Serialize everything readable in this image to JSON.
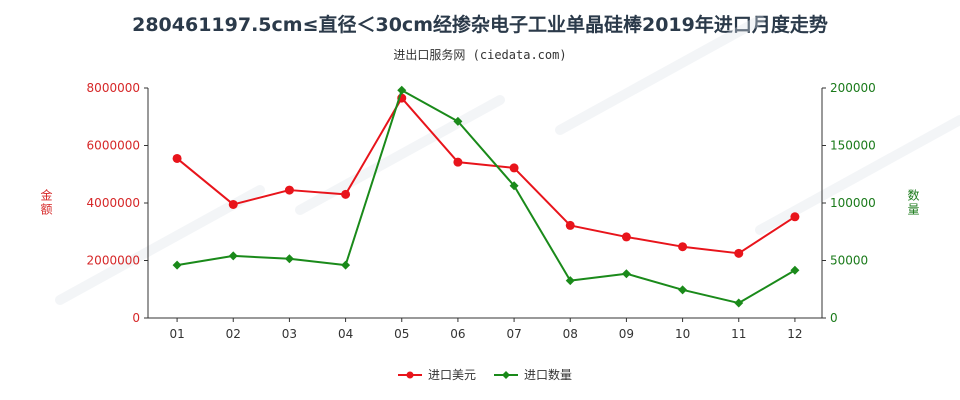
{
  "chart_data": {
    "type": "line",
    "title": "280461197.5cm≤直径＜30cm经掺杂电子工业单晶硅棒2019年进口月度走势",
    "subtitle": "进出口服务网 (ciedata.com)",
    "categories": [
      "01",
      "02",
      "03",
      "04",
      "05",
      "06",
      "07",
      "08",
      "09",
      "10",
      "11",
      "12"
    ],
    "y_left": {
      "label": "金额",
      "range": [
        0,
        8000000
      ],
      "ticks": [
        "0",
        "2000000",
        "4000000",
        "6000000",
        "8000000"
      ],
      "color": "#d62728"
    },
    "y_right": {
      "label": "数量",
      "range": [
        0,
        200000
      ],
      "ticks": [
        "0",
        "50000",
        "100000",
        "150000",
        "200000"
      ],
      "color": "#1a7a1a"
    },
    "series": [
      {
        "name": "进口美元",
        "axis": "left",
        "color": "#e8141b",
        "marker": "circle",
        "values": [
          5550000,
          3950000,
          4450000,
          4300000,
          7650000,
          5420000,
          5220000,
          3220000,
          2820000,
          2480000,
          2250000,
          3520000
        ]
      },
      {
        "name": "进口数量",
        "axis": "right",
        "color": "#1a8a1a",
        "marker": "diamond",
        "values": [
          46000,
          54000,
          51500,
          46000,
          198000,
          171000,
          115000,
          32500,
          38500,
          24500,
          13000,
          41500
        ]
      }
    ],
    "grid": false,
    "legend_position": "bottom-center"
  }
}
